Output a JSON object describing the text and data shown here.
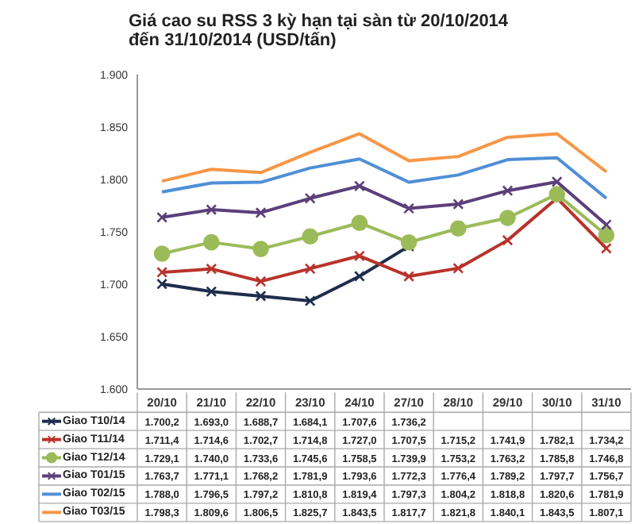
{
  "chart_data": {
    "type": "line",
    "title": "Giá cao su RSS 3 kỳ hạn tại sàn từ 20/10/2014\nđến 31/10/2014 (USD/tấn)",
    "categories": [
      "20/10",
      "21/10",
      "22/10",
      "23/10",
      "24/10",
      "27/10",
      "28/10",
      "29/10",
      "30/10",
      "31/10"
    ],
    "ylim": [
      1600,
      1900
    ],
    "yticks": [
      {
        "value": 1600,
        "label": "1.600"
      },
      {
        "value": 1650,
        "label": "1.650"
      },
      {
        "value": 1700,
        "label": "1.700"
      },
      {
        "value": 1750,
        "label": "1.750"
      },
      {
        "value": 1800,
        "label": "1.800"
      },
      {
        "value": 1850,
        "label": "1.850"
      },
      {
        "value": 1900,
        "label": "1.900"
      }
    ],
    "grid": false,
    "legend": "bottom",
    "series": [
      {
        "name": "Giao T10/14",
        "color": "#1f2d4d",
        "marker": "cross",
        "values": [
          1700.2,
          1693.0,
          1688.7,
          1684.1,
          1707.6,
          1736.2,
          null,
          null,
          null,
          null
        ],
        "value_labels": [
          "1.700,2",
          "1.693,0",
          "1.688,7",
          "1.684,1",
          "1.707,6",
          "1.736,2",
          null,
          null,
          null,
          null
        ]
      },
      {
        "name": "Giao T11/14",
        "color": "#b8332b",
        "marker": "cross",
        "values": [
          1711.4,
          1714.6,
          1702.7,
          1714.8,
          1727.0,
          1707.5,
          1715.2,
          1741.9,
          1782.1,
          1734.2
        ],
        "value_labels": [
          "1.711,4",
          "1.714,6",
          "1.702,7",
          "1.714,8",
          "1.727,0",
          "1.707,5",
          "1.715,2",
          "1.741,9",
          "1.782,1",
          "1.734,2"
        ]
      },
      {
        "name": "Giao T12/14",
        "color": "#9bbb59",
        "marker": "circle",
        "values": [
          1729.1,
          1740.0,
          1733.6,
          1745.6,
          1758.5,
          1739.9,
          1753.2,
          1763.2,
          1785.8,
          1746.8
        ],
        "value_labels": [
          "1.729,1",
          "1.740,0",
          "1.733,6",
          "1.745,6",
          "1.758,5",
          "1.739,9",
          "1.753,2",
          "1.763,2",
          "1.785,8",
          "1.746,8"
        ]
      },
      {
        "name": "Giao T01/15",
        "color": "#5b3f7a",
        "marker": "cross",
        "values": [
          1763.7,
          1771.1,
          1768.2,
          1781.9,
          1793.6,
          1772.3,
          1776.4,
          1789.2,
          1797.7,
          1756.7
        ],
        "value_labels": [
          "1.763,7",
          "1.771,1",
          "1.768,2",
          "1.781,9",
          "1.793,6",
          "1.772,3",
          "1.776,4",
          "1.789,2",
          "1.797,7",
          "1.756,7"
        ]
      },
      {
        "name": "Giao T02/15",
        "color": "#4f8fd6",
        "marker": "none",
        "values": [
          1788.0,
          1796.5,
          1797.2,
          1810.8,
          1819.4,
          1797.3,
          1804.2,
          1818.8,
          1820.6,
          1781.9
        ],
        "value_labels": [
          "1.788,0",
          "1.796,5",
          "1.797,2",
          "1.810,8",
          "1.819,4",
          "1.797,3",
          "1.804,2",
          "1.818,8",
          "1.820,6",
          "1.781,9"
        ]
      },
      {
        "name": "Giao T03/15",
        "color": "#f79646",
        "marker": "none",
        "values": [
          1798.3,
          1809.6,
          1806.5,
          1825.7,
          1843.5,
          1817.7,
          1821.8,
          1840.1,
          1843.5,
          1807.1
        ],
        "value_labels": [
          "1.798,3",
          "1.809,6",
          "1.806,5",
          "1.825,7",
          "1.843,5",
          "1.817,7",
          "1.821,8",
          "1.840,1",
          "1.843,5",
          "1.807,1"
        ]
      }
    ]
  }
}
